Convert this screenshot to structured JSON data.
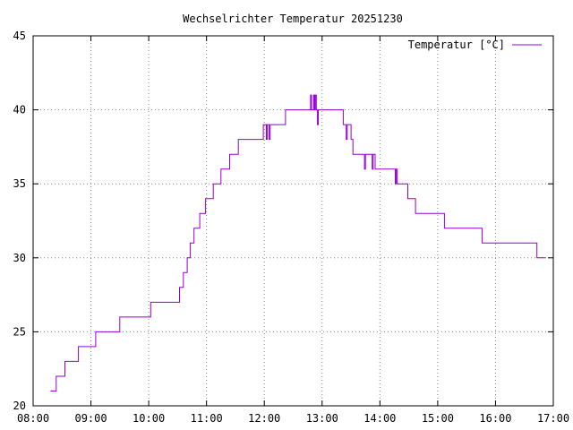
{
  "chart_data": {
    "type": "line",
    "title": "Wechselrichter Temperatur 20251230",
    "xlabel": "",
    "ylabel": "",
    "xlim": [
      "08:00",
      "17:00"
    ],
    "ylim": [
      20,
      45
    ],
    "grid": true,
    "legend_position": "top-right",
    "x_ticks": [
      "08:00",
      "09:00",
      "10:00",
      "11:00",
      "12:00",
      "13:00",
      "14:00",
      "15:00",
      "16:00",
      "17:00"
    ],
    "y_ticks": [
      20,
      25,
      30,
      35,
      40,
      45
    ],
    "series": [
      {
        "name": "Temperatur [°C]",
        "color": "#9400d3",
        "points": [
          [
            "08:18",
            21
          ],
          [
            "08:24",
            21
          ],
          [
            "08:24",
            22
          ],
          [
            "08:33",
            22
          ],
          [
            "08:33",
            23
          ],
          [
            "08:47",
            23
          ],
          [
            "08:47",
            24
          ],
          [
            "09:05",
            24
          ],
          [
            "09:05",
            25
          ],
          [
            "09:30",
            25
          ],
          [
            "09:30",
            26
          ],
          [
            "10:02",
            26
          ],
          [
            "10:02",
            27
          ],
          [
            "10:32",
            27
          ],
          [
            "10:32",
            28
          ],
          [
            "10:36",
            28
          ],
          [
            "10:36",
            29
          ],
          [
            "10:40",
            29
          ],
          [
            "10:40",
            30
          ],
          [
            "10:43",
            30
          ],
          [
            "10:43",
            31
          ],
          [
            "10:47",
            31
          ],
          [
            "10:47",
            32
          ],
          [
            "10:53",
            32
          ],
          [
            "10:53",
            33
          ],
          [
            "10:59",
            33
          ],
          [
            "10:59",
            34
          ],
          [
            "11:07",
            34
          ],
          [
            "11:07",
            35
          ],
          [
            "11:15",
            35
          ],
          [
            "11:15",
            36
          ],
          [
            "11:24",
            36
          ],
          [
            "11:24",
            37
          ],
          [
            "11:33",
            37
          ],
          [
            "11:33",
            38
          ],
          [
            "11:59",
            38
          ],
          [
            "11:59",
            39
          ],
          [
            "12:02",
            39
          ],
          [
            "12:02",
            38
          ],
          [
            "12:03",
            38
          ],
          [
            "12:03",
            39
          ],
          [
            "12:05",
            39
          ],
          [
            "12:05",
            38
          ],
          [
            "12:06",
            38
          ],
          [
            "12:06",
            39
          ],
          [
            "12:22",
            39
          ],
          [
            "12:22",
            40
          ],
          [
            "12:48",
            40
          ],
          [
            "12:48",
            41
          ],
          [
            "12:49",
            41
          ],
          [
            "12:49",
            40
          ],
          [
            "12:51",
            40
          ],
          [
            "12:51",
            41
          ],
          [
            "12:52",
            41
          ],
          [
            "12:52",
            40
          ],
          [
            "12:53",
            40
          ],
          [
            "12:53",
            41
          ],
          [
            "12:54",
            41
          ],
          [
            "12:54",
            40
          ],
          [
            "12:55",
            40
          ],
          [
            "12:55",
            39
          ],
          [
            "12:56",
            39
          ],
          [
            "12:56",
            40
          ],
          [
            "13:22",
            40
          ],
          [
            "13:22",
            39
          ],
          [
            "13:25",
            39
          ],
          [
            "13:25",
            38
          ],
          [
            "13:26",
            38
          ],
          [
            "13:26",
            39
          ],
          [
            "13:30",
            39
          ],
          [
            "13:30",
            38
          ],
          [
            "13:32",
            38
          ],
          [
            "13:32",
            37
          ],
          [
            "13:44",
            37
          ],
          [
            "13:44",
            36
          ],
          [
            "13:45",
            36
          ],
          [
            "13:45",
            37
          ],
          [
            "13:52",
            37
          ],
          [
            "13:52",
            36
          ],
          [
            "13:53",
            36
          ],
          [
            "13:53",
            37
          ],
          [
            "13:55",
            37
          ],
          [
            "13:55",
            36
          ],
          [
            "14:16",
            36
          ],
          [
            "14:16",
            35
          ],
          [
            "14:17",
            35
          ],
          [
            "14:17",
            36
          ],
          [
            "14:18",
            36
          ],
          [
            "14:18",
            35
          ],
          [
            "14:29",
            35
          ],
          [
            "14:29",
            34
          ],
          [
            "14:37",
            34
          ],
          [
            "14:37",
            33
          ],
          [
            "15:07",
            33
          ],
          [
            "15:07",
            32
          ],
          [
            "15:46",
            32
          ],
          [
            "15:46",
            31
          ],
          [
            "16:43",
            31
          ],
          [
            "16:43",
            30
          ],
          [
            "16:52",
            30
          ]
        ]
      }
    ]
  }
}
